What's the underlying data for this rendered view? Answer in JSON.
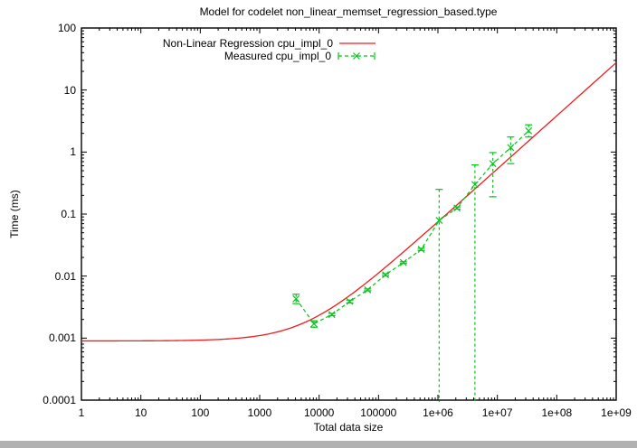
{
  "window": {
    "background_color": "#ffffff",
    "bottom_strip_color": "#b1b1b1"
  },
  "chart_data": {
    "type": "line",
    "title": "Model for codelet non_linear_memset_regression_based.type",
    "xlabel": "Total data size",
    "ylabel": "Time (ms)",
    "x_scale": "log",
    "y_scale": "log",
    "xlim": [
      1,
      1000000000
    ],
    "ylim": [
      0.0001,
      100
    ],
    "x_ticks": [
      "1",
      "10",
      "100",
      "1000",
      "10000",
      "100000",
      "1e+06",
      "1e+07",
      "1e+08",
      "1e+09"
    ],
    "y_ticks": [
      "100",
      "10",
      "1",
      "0.1",
      "0.01",
      "0.001",
      "0.0001"
    ],
    "grid": false,
    "legend_position": "top-center-inside",
    "series": [
      {
        "name": "Non-Linear Regression cpu_impl_0",
        "type": "model-curve",
        "line_style": "solid",
        "color": "#ee1c1c",
        "model": {
          "form": "a + b*x^c",
          "a": 0.0009,
          "b": 5.35e-07,
          "c": 0.857
        }
      },
      {
        "name": "Measured cpu_impl_0",
        "type": "points-with-errorbars",
        "line_style": "dashed",
        "marker": "x",
        "color": "#00c818",
        "points": [
          {
            "x": 4096,
            "y": 0.0043,
            "ylo": 0.0036,
            "yhi": 0.0051
          },
          {
            "x": 8192,
            "y": 0.0017,
            "ylo": 0.0015,
            "yhi": 0.0019
          },
          {
            "x": 16384,
            "y": 0.0024,
            "ylo": 0.0023,
            "yhi": 0.0025
          },
          {
            "x": 32768,
            "y": 0.0039,
            "ylo": 0.0037,
            "yhi": 0.0041
          },
          {
            "x": 65536,
            "y": 0.006,
            "ylo": 0.0058,
            "yhi": 0.0062
          },
          {
            "x": 131072,
            "y": 0.0105,
            "ylo": 0.0101,
            "yhi": 0.0109
          },
          {
            "x": 262144,
            "y": 0.0165,
            "ylo": 0.016,
            "yhi": 0.017
          },
          {
            "x": 524288,
            "y": 0.027,
            "ylo": 0.026,
            "yhi": 0.028
          },
          {
            "x": 1048576,
            "y": 0.079,
            "ylo": null,
            "yhi": 0.25,
            "clip_low": true
          },
          {
            "x": 2097152,
            "y": 0.125,
            "ylo": 0.12,
            "yhi": 0.13
          },
          {
            "x": 4194304,
            "y": 0.3,
            "ylo": null,
            "yhi": 0.62,
            "clip_low": true
          },
          {
            "x": 8388608,
            "y": 0.65,
            "ylo": 0.19,
            "yhi": 0.98
          },
          {
            "x": 16777216,
            "y": 1.18,
            "ylo": 0.65,
            "yhi": 1.75
          },
          {
            "x": 33554432,
            "y": 2.2,
            "ylo": 1.75,
            "yhi": 2.75
          }
        ]
      }
    ]
  }
}
